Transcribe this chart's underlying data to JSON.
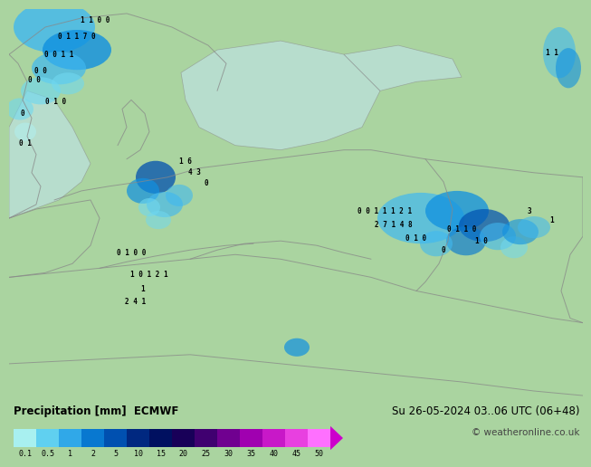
{
  "title_left": "Precipitation [mm]  ECMWF",
  "title_right": "Su 26-05-2024 03..06 UTC (06+48)",
  "copyright": "© weatheronline.co.uk",
  "colorbar_values": [
    "0.1",
    "0.5",
    "1",
    "2",
    "5",
    "10",
    "15",
    "20",
    "25",
    "30",
    "35",
    "40",
    "45",
    "50"
  ],
  "colorbar_colors": [
    "#a8f0f0",
    "#60d0f0",
    "#30a8e8",
    "#0878d0",
    "#0050b0",
    "#002880",
    "#001060",
    "#180058",
    "#400070",
    "#700090",
    "#a000b0",
    "#c818c8",
    "#e840e0",
    "#ff70ff"
  ],
  "arrow_color": "#cc00cc",
  "bg_color": "#aad4a0",
  "bottom_bg": "#d8d8d8",
  "sea_color": "#c0e4ec",
  "land_color": "#aad4a0",
  "border_color": "#888888"
}
